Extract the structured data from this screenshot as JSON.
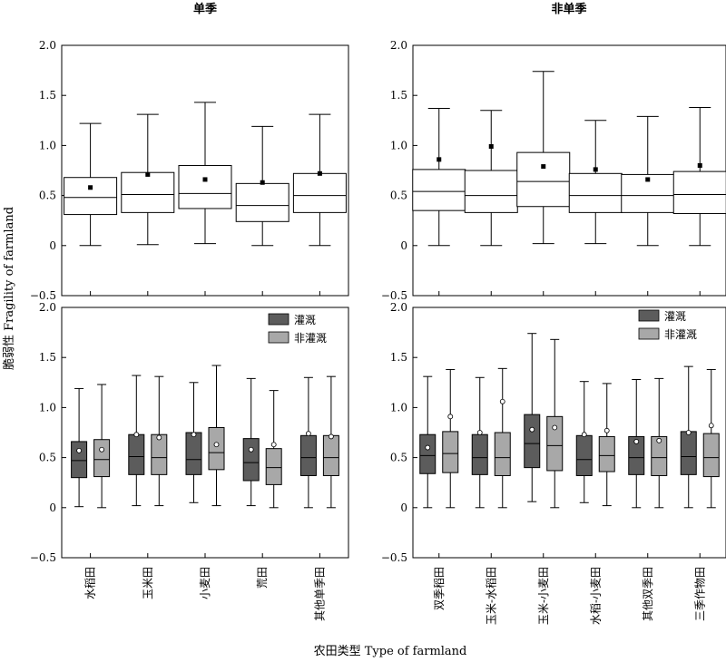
{
  "figure": {
    "xlabel": "农田类型 Type of farmland",
    "ylabel": "脆弱性 Fragility of farmland",
    "legend": {
      "irrigated": "灌溉",
      "non_irrigated": "非灌溉",
      "placement": "top-right"
    },
    "colors": {
      "irrigated": "#5c5c5c",
      "non_irrigated": "#a8a8a8",
      "plain_box": "#ffffff",
      "outline": "#000000"
    }
  },
  "chart_data": [
    {
      "type": "box",
      "title": "单季",
      "ylim": [
        -0.5,
        2.0
      ],
      "yticks": [
        -0.5,
        0,
        0.5,
        1.0,
        1.5,
        2.0
      ],
      "ytick_labels": [
        "−0.5",
        "0",
        "0.5",
        "1.0",
        "1.5",
        "2.0"
      ],
      "categories": [
        "水稻田",
        "玉米田",
        "小麦田",
        "荒田",
        "其他单季田"
      ],
      "series": [
        {
          "style": "plain",
          "boxes": [
            {
              "min": 0.0,
              "q1": 0.31,
              "median": 0.48,
              "q3": 0.68,
              "max": 1.22,
              "mean": 0.58
            },
            {
              "min": 0.01,
              "q1": 0.33,
              "median": 0.51,
              "q3": 0.73,
              "max": 1.31,
              "mean": 0.71
            },
            {
              "min": 0.02,
              "q1": 0.37,
              "median": 0.52,
              "q3": 0.8,
              "max": 1.43,
              "mean": 0.66
            },
            {
              "min": 0.0,
              "q1": 0.24,
              "median": 0.4,
              "q3": 0.62,
              "max": 1.19,
              "mean": 0.63
            },
            {
              "min": 0.0,
              "q1": 0.33,
              "median": 0.5,
              "q3": 0.72,
              "max": 1.31,
              "mean": 0.72
            }
          ]
        }
      ]
    },
    {
      "type": "box",
      "title": "非单季",
      "ylim": [
        -0.5,
        2.0
      ],
      "yticks": [
        -0.5,
        0,
        0.5,
        1.0,
        1.5,
        2.0
      ],
      "ytick_labels": [
        "−0.5",
        "0",
        "0.5",
        "1.0",
        "1.5",
        "2.0"
      ],
      "categories": [
        "双季稻田",
        "玉米-水稻田",
        "玉米-小麦田",
        "水稻-小麦田",
        "其他双季田",
        "三季作物田"
      ],
      "series": [
        {
          "style": "plain",
          "boxes": [
            {
              "min": 0.0,
              "q1": 0.35,
              "median": 0.54,
              "q3": 0.76,
              "max": 1.37,
              "mean": 0.86
            },
            {
              "min": 0.0,
              "q1": 0.33,
              "median": 0.5,
              "q3": 0.75,
              "max": 1.35,
              "mean": 0.99
            },
            {
              "min": 0.02,
              "q1": 0.39,
              "median": 0.64,
              "q3": 0.93,
              "max": 1.74,
              "mean": 0.79
            },
            {
              "min": 0.02,
              "q1": 0.33,
              "median": 0.5,
              "q3": 0.72,
              "max": 1.25,
              "mean": 0.76
            },
            {
              "min": 0.0,
              "q1": 0.33,
              "median": 0.5,
              "q3": 0.71,
              "max": 1.29,
              "mean": 0.66
            },
            {
              "min": 0.0,
              "q1": 0.32,
              "median": 0.51,
              "q3": 0.74,
              "max": 1.38,
              "mean": 0.8
            }
          ]
        }
      ]
    },
    {
      "type": "box",
      "title": "",
      "ylim": [
        -0.5,
        2.0
      ],
      "yticks": [
        -0.5,
        0,
        0.5,
        1.0,
        1.5,
        2.0
      ],
      "ytick_labels": [
        "−0.5",
        "0",
        "0.5",
        "1.0",
        "1.5",
        "2.0"
      ],
      "categories": [
        "水稻田",
        "玉米田",
        "小麦田",
        "荒田",
        "其他单季田"
      ],
      "series": [
        {
          "name": "灌溉",
          "style": "irrigated",
          "boxes": [
            {
              "min": 0.01,
              "q1": 0.3,
              "median": 0.47,
              "q3": 0.66,
              "max": 1.19,
              "mean": 0.57
            },
            {
              "min": 0.02,
              "q1": 0.33,
              "median": 0.51,
              "q3": 0.73,
              "max": 1.32,
              "mean": 0.73
            },
            {
              "min": 0.05,
              "q1": 0.33,
              "median": 0.48,
              "q3": 0.75,
              "max": 1.25,
              "mean": 0.73
            },
            {
              "min": 0.02,
              "q1": 0.27,
              "median": 0.45,
              "q3": 0.69,
              "max": 1.29,
              "mean": 0.58
            },
            {
              "min": 0.0,
              "q1": 0.32,
              "median": 0.5,
              "q3": 0.72,
              "max": 1.3,
              "mean": 0.74
            }
          ]
        },
        {
          "name": "非灌溉",
          "style": "non_irrigated",
          "boxes": [
            {
              "min": 0.0,
              "q1": 0.31,
              "median": 0.48,
              "q3": 0.68,
              "max": 1.23,
              "mean": 0.58
            },
            {
              "min": 0.02,
              "q1": 0.33,
              "median": 0.5,
              "q3": 0.73,
              "max": 1.31,
              "mean": 0.7
            },
            {
              "min": 0.02,
              "q1": 0.38,
              "median": 0.55,
              "q3": 0.8,
              "max": 1.42,
              "mean": 0.63
            },
            {
              "min": 0.0,
              "q1": 0.23,
              "median": 0.4,
              "q3": 0.59,
              "max": 1.17,
              "mean": 0.63
            },
            {
              "min": 0.0,
              "q1": 0.32,
              "median": 0.5,
              "q3": 0.72,
              "max": 1.31,
              "mean": 0.71
            }
          ]
        }
      ]
    },
    {
      "type": "box",
      "title": "",
      "ylim": [
        -0.5,
        2.0
      ],
      "yticks": [
        -0.5,
        0,
        0.5,
        1.0,
        1.5,
        2.0
      ],
      "ytick_labels": [
        "−0.5",
        "0",
        "0.5",
        "1.0",
        "1.5",
        "2.0"
      ],
      "categories": [
        "双季稻田",
        "玉米-水稻田",
        "玉米-小麦田",
        "水稻-小麦田",
        "其他双季田",
        "三季作物田"
      ],
      "series": [
        {
          "name": "灌溉",
          "style": "irrigated",
          "boxes": [
            {
              "min": 0.0,
              "q1": 0.34,
              "median": 0.52,
              "q3": 0.73,
              "max": 1.31,
              "mean": 0.6
            },
            {
              "min": 0.0,
              "q1": 0.33,
              "median": 0.5,
              "q3": 0.73,
              "max": 1.3,
              "mean": 0.75
            },
            {
              "min": 0.06,
              "q1": 0.4,
              "median": 0.64,
              "q3": 0.93,
              "max": 1.74,
              "mean": 0.78
            },
            {
              "min": 0.05,
              "q1": 0.32,
              "median": 0.48,
              "q3": 0.72,
              "max": 1.26,
              "mean": 0.73
            },
            {
              "min": 0.0,
              "q1": 0.33,
              "median": 0.5,
              "q3": 0.71,
              "max": 1.28,
              "mean": 0.66
            },
            {
              "min": 0.0,
              "q1": 0.33,
              "median": 0.51,
              "q3": 0.76,
              "max": 1.41,
              "mean": 0.75
            }
          ]
        },
        {
          "name": "非灌溉",
          "style": "non_irrigated",
          "boxes": [
            {
              "min": 0.0,
              "q1": 0.35,
              "median": 0.54,
              "q3": 0.76,
              "max": 1.38,
              "mean": 0.91
            },
            {
              "min": 0.0,
              "q1": 0.32,
              "median": 0.5,
              "q3": 0.75,
              "max": 1.39,
              "mean": 1.06
            },
            {
              "min": 0.0,
              "q1": 0.37,
              "median": 0.62,
              "q3": 0.91,
              "max": 1.68,
              "mean": 0.8
            },
            {
              "min": 0.02,
              "q1": 0.36,
              "median": 0.52,
              "q3": 0.71,
              "max": 1.24,
              "mean": 0.77
            },
            {
              "min": 0.0,
              "q1": 0.32,
              "median": 0.5,
              "q3": 0.71,
              "max": 1.29,
              "mean": 0.67
            },
            {
              "min": 0.0,
              "q1": 0.31,
              "median": 0.5,
              "q3": 0.74,
              "max": 1.38,
              "mean": 0.82
            }
          ]
        }
      ]
    }
  ]
}
